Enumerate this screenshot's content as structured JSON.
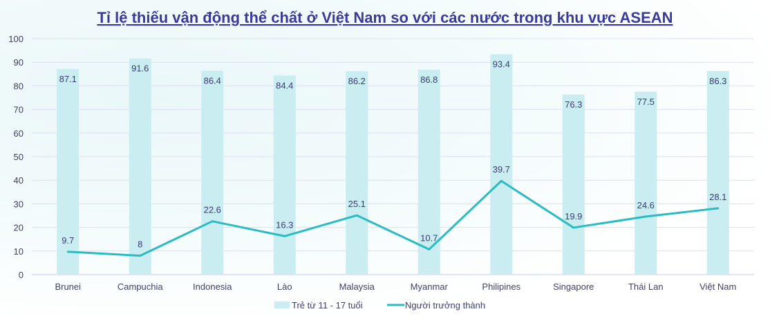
{
  "chart_data": {
    "type": "bar+line",
    "title": "Tỉ lệ thiếu vận động thể chất ở Việt Nam so với các nước trong khu vực ASEAN",
    "categories": [
      "Brunei",
      "Campuchia",
      "Indonesia",
      "Lào",
      "Malaysia",
      "Myanmar",
      "Philipines",
      "Singapore",
      "Thái Lan",
      "Việt Nam"
    ],
    "series": [
      {
        "name": "Trẻ từ 11 - 17 tuổi",
        "type": "bar",
        "color": "#c9edf0",
        "values": [
          87.1,
          91.6,
          86.4,
          84.4,
          86.2,
          86.8,
          93.4,
          76.3,
          77.5,
          86.3
        ]
      },
      {
        "name": "Người trưởng thành",
        "type": "line",
        "color": "#2bbcc3",
        "values": [
          9.7,
          8,
          22.6,
          16.3,
          25.1,
          10.7,
          39.7,
          19.9,
          24.6,
          28.1
        ]
      }
    ],
    "ylim": [
      0,
      100
    ],
    "yticks": [
      0,
      10,
      20,
      30,
      40,
      50,
      60,
      70,
      80,
      90,
      100
    ],
    "grid": true,
    "legend": "bottom"
  }
}
